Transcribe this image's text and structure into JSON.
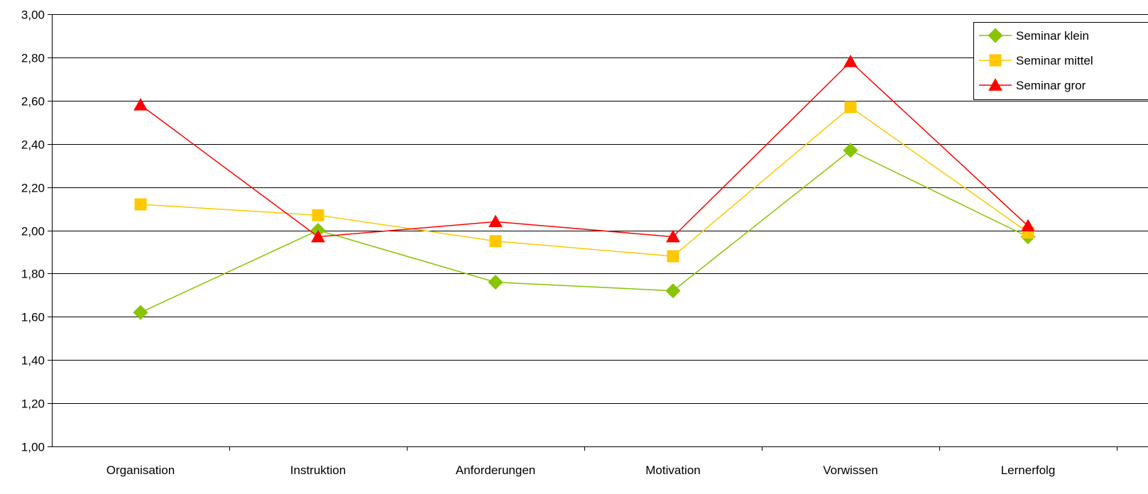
{
  "chart_data": {
    "type": "line",
    "categories": [
      "Organisation",
      "Instruktion",
      "Anforderungen",
      "Motivation",
      "Vorwissen",
      "Lernerfolg"
    ],
    "series": [
      {
        "name": "Seminar klein",
        "color": "#88C400",
        "marker": "diamond",
        "values": [
          1.62,
          2.0,
          1.76,
          1.72,
          2.37,
          1.97
        ]
      },
      {
        "name": "Seminar mittel",
        "color": "#FFC800",
        "marker": "square",
        "values": [
          2.12,
          2.07,
          1.95,
          1.88,
          2.57,
          1.99
        ]
      },
      {
        "name": "Seminar gror",
        "color": "#FF0000",
        "marker": "triangle",
        "values": [
          2.58,
          1.97,
          2.04,
          1.97,
          2.78,
          2.02
        ]
      }
    ],
    "ylim": [
      1.0,
      3.0
    ],
    "yticks": [
      "1,00",
      "1,20",
      "1,40",
      "1,60",
      "1,80",
      "2,00",
      "2,20",
      "2,40",
      "2,60",
      "2,80",
      "3,00"
    ],
    "grid": true,
    "legend_position": "top-right",
    "title": "",
    "xlabel": "",
    "ylabel": ""
  }
}
